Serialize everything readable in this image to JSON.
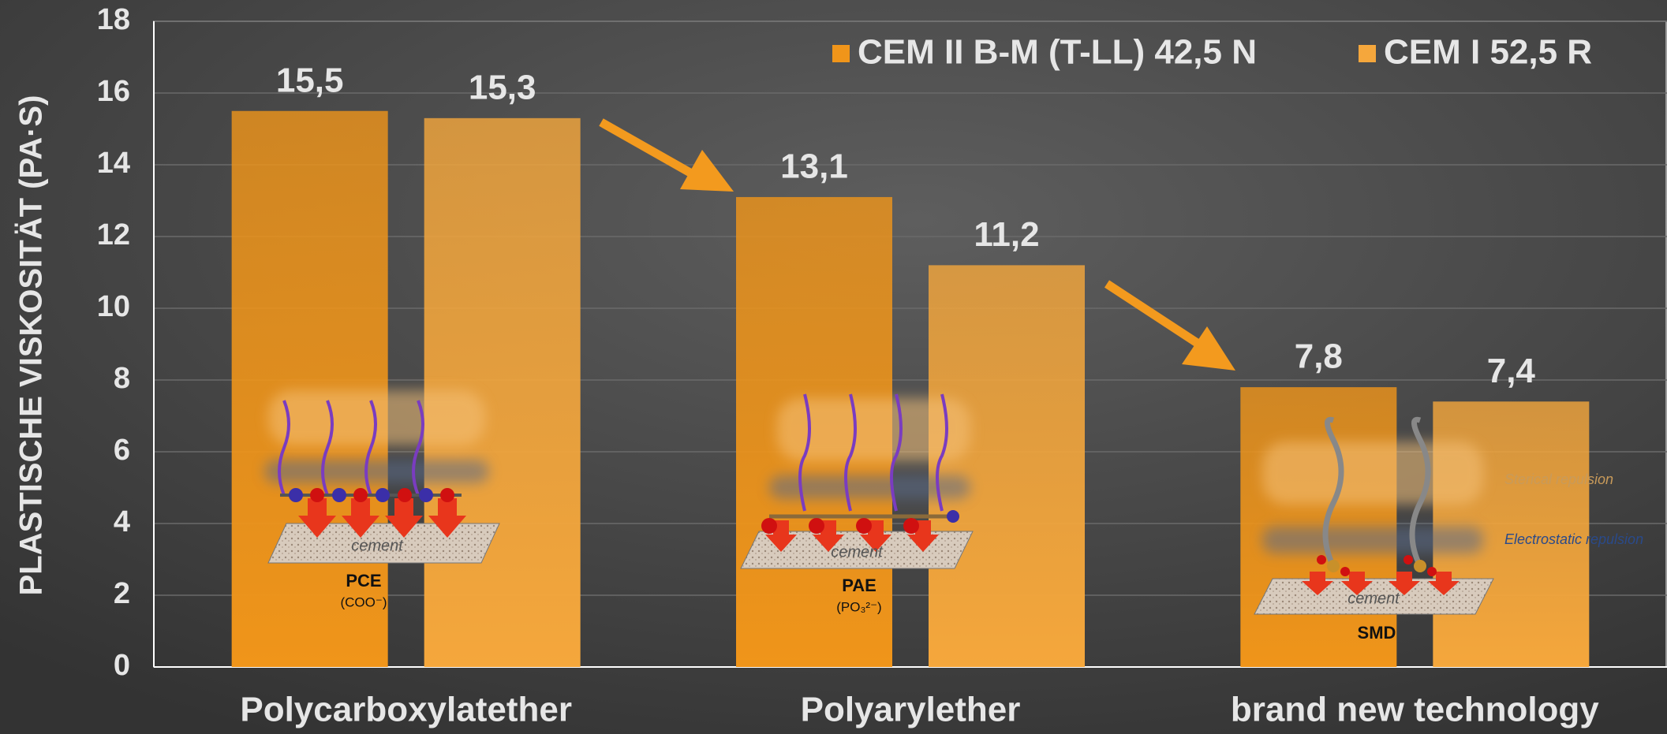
{
  "chart_data": {
    "type": "bar",
    "y_label": "PLASTISCHE VISKOSITÄT (PA·S)",
    "categories": [
      "Polycarboxylatether",
      "Polyarylether",
      "brand new technology"
    ],
    "series": [
      {
        "name": "CEM II B-M (T-LL) 42,5 N",
        "color": "#f0951a",
        "values": [
          15.5,
          13.1,
          7.8
        ],
        "value_labels": [
          "15,5",
          "13,1",
          "7,8"
        ]
      },
      {
        "name": "CEM I 52,5 R",
        "color": "#f5a73c",
        "values": [
          15.3,
          11.2,
          7.4
        ],
        "value_labels": [
          "15,3",
          "11,2",
          "7,4"
        ]
      }
    ],
    "ylim": [
      0,
      18
    ],
    "yticks": [
      0,
      2,
      4,
      6,
      8,
      10,
      12,
      14,
      16,
      18
    ],
    "grid": true,
    "legend": "upper right",
    "annotations": [
      "PCE",
      "(COO⁻)",
      "PAE",
      "(PO₃²⁻)",
      "SMD",
      "cement",
      "cement",
      "cement",
      "Sterical repulsion",
      "Electrostatic repulsion"
    ]
  }
}
